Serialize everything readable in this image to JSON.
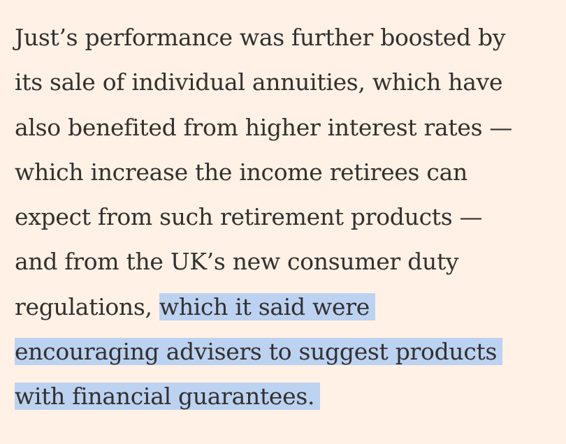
{
  "article": {
    "lines": [
      {
        "plain": "Just’s performance was further boosted by",
        "highlighted": ""
      },
      {
        "plain": "its sale of individual annuities, which have",
        "highlighted": ""
      },
      {
        "plain": "also benefited from higher interest rates —",
        "highlighted": ""
      },
      {
        "plain": "which increase the income retirees can",
        "highlighted": ""
      },
      {
        "plain": "expect from such retirement products —",
        "highlighted": ""
      },
      {
        "plain": "and from the UK’s new consumer duty",
        "highlighted": ""
      },
      {
        "plain": "regulations, ",
        "highlighted": "which it said were"
      },
      {
        "plain": "",
        "highlighted": "encouraging advisers to suggest products"
      },
      {
        "plain": "",
        "highlighted": "with financial guarantees."
      }
    ],
    "highlight_color": "#bcd2f1",
    "background_color": "#fff1e5",
    "text_color": "#33302e"
  }
}
